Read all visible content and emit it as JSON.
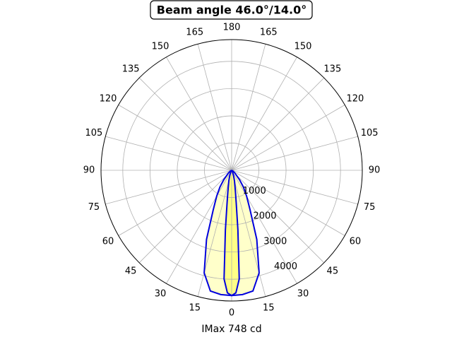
{
  "chart_data": {
    "type": "polar",
    "title": "Beam angle 46.0°/14.0°",
    "xlabel": "IMax 748 cd",
    "rlim": [
      0,
      4800
    ],
    "rticks": [
      1000,
      2000,
      3000,
      4000
    ],
    "thetaticks": [
      0,
      15,
      30,
      45,
      60,
      75,
      90,
      105,
      120,
      135,
      150,
      165,
      180,
      {
        "value": 195,
        "label": "165"
      },
      {
        "value": 210,
        "label": "150"
      },
      {
        "value": 225,
        "label": "135"
      },
      {
        "value": 240,
        "label": "120"
      },
      {
        "value": 255,
        "label": "105"
      },
      {
        "value": 270,
        "label": "90"
      },
      {
        "value": 285,
        "label": "75"
      },
      {
        "value": 300,
        "label": "60"
      },
      {
        "value": 315,
        "label": "45"
      },
      {
        "value": 330,
        "label": "30"
      },
      {
        "value": 345,
        "label": "15"
      }
    ],
    "grid": true,
    "series": [
      {
        "color": "#0000dd",
        "fill": "#ffffc4",
        "theta": [
          -90,
          -70,
          -60,
          -50,
          -40,
          -35,
          -30,
          -25,
          -20,
          -15,
          -10,
          -5,
          0,
          5,
          10,
          15,
          20,
          25,
          30,
          35,
          40,
          50,
          60,
          70,
          90
        ],
        "values": [
          0,
          0,
          50,
          150,
          450,
          750,
          1100,
          1600,
          2700,
          3900,
          4500,
          4580,
          4600,
          4580,
          4500,
          3900,
          2700,
          1600,
          1100,
          750,
          450,
          150,
          50,
          0,
          0
        ]
      },
      {
        "color": "#0000dd",
        "fill": "#ffff80",
        "theta": [
          -45,
          -30,
          -20,
          -15,
          -10,
          -8,
          -6,
          -4,
          -2,
          0,
          2,
          4,
          6,
          8,
          10,
          15,
          20,
          30,
          45
        ],
        "values": [
          0,
          60,
          200,
          400,
          800,
          1200,
          2200,
          4000,
          4500,
          4600,
          4500,
          4000,
          2200,
          1200,
          800,
          400,
          200,
          60,
          0
        ]
      }
    ]
  }
}
